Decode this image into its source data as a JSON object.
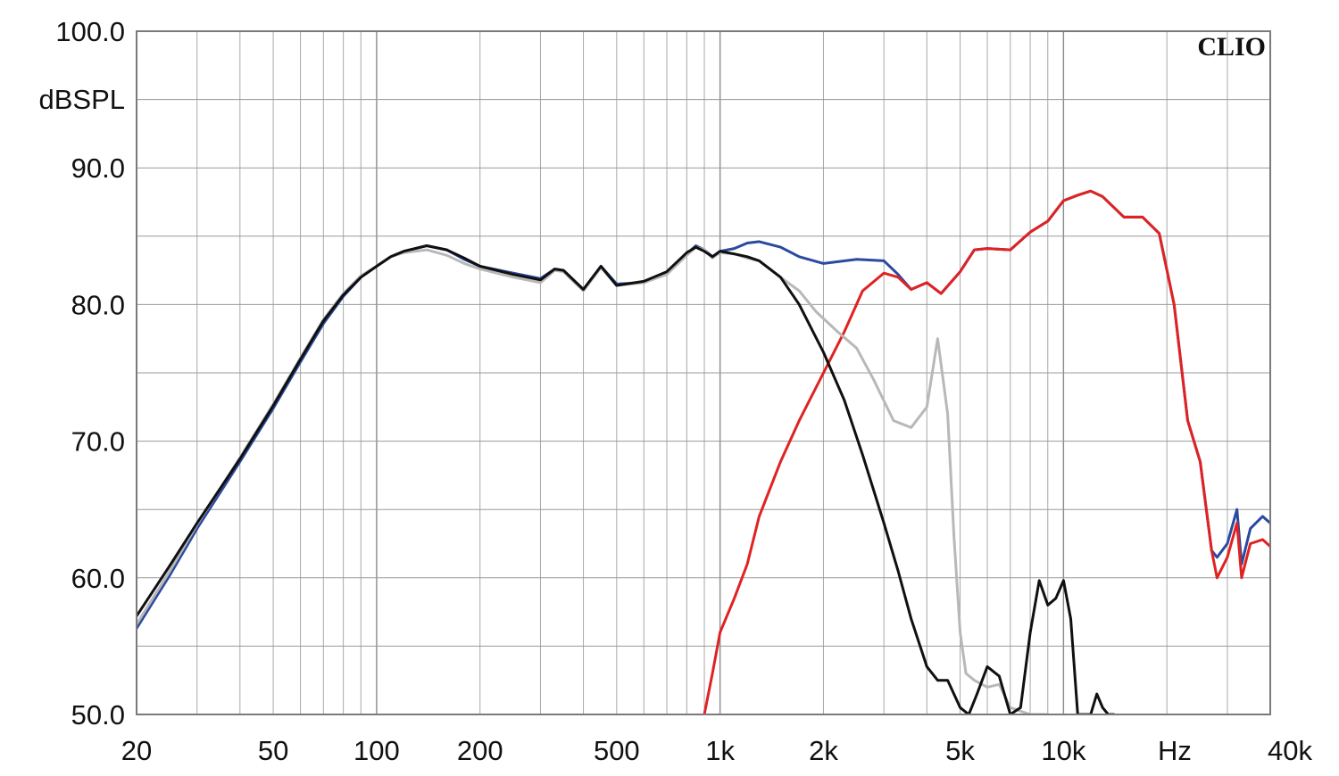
{
  "brand_label": "CLIO",
  "chart_data": {
    "type": "line",
    "ylabel": "dBSPL",
    "x_unit_label": "Hz",
    "x_scale": "log",
    "xlim": [
      20,
      40000
    ],
    "ylim": [
      50,
      100
    ],
    "grid": true,
    "x_ticks": [
      {
        "value": 20,
        "label": "20"
      },
      {
        "value": 50,
        "label": "50"
      },
      {
        "value": 100,
        "label": "100"
      },
      {
        "value": 200,
        "label": "200"
      },
      {
        "value": 500,
        "label": "500"
      },
      {
        "value": 1000,
        "label": "1k"
      },
      {
        "value": 2000,
        "label": "2k"
      },
      {
        "value": 5000,
        "label": "5k"
      },
      {
        "value": 10000,
        "label": "10k"
      },
      {
        "value": 40000,
        "label": "40k"
      }
    ],
    "y_ticks": [
      {
        "value": 100,
        "label": "100.0"
      },
      {
        "value": 90,
        "label": "90.0"
      },
      {
        "value": 80,
        "label": "80.0"
      },
      {
        "value": 70,
        "label": "70.0"
      },
      {
        "value": 60,
        "label": "60.0"
      },
      {
        "value": 50,
        "label": "50.0"
      }
    ],
    "series": [
      {
        "color": "#2a4aa0",
        "x": [
          20,
          25,
          30,
          40,
          50,
          60,
          70,
          80,
          90,
          100,
          110,
          120,
          140,
          160,
          180,
          200,
          250,
          300,
          330,
          350,
          400,
          450,
          500,
          600,
          700,
          800,
          850,
          900,
          950,
          1000,
          1100,
          1200,
          1300,
          1500,
          1700,
          2000,
          2500,
          3000,
          3300,
          3600,
          4000,
          4400,
          5000,
          5500,
          6000,
          7000,
          8000,
          9000,
          10000,
          11000,
          12000,
          13000,
          15000,
          17000,
          19000,
          21000,
          23000,
          25000,
          27000,
          28000,
          30000,
          32000,
          33000,
          35000,
          38000,
          40000
        ],
        "y": [
          56.3,
          60.2,
          63.6,
          68.5,
          72.4,
          75.8,
          78.6,
          80.6,
          82.0,
          82.8,
          83.5,
          83.9,
          84.3,
          84.0,
          83.3,
          82.8,
          82.3,
          81.9,
          82.6,
          82.5,
          81.1,
          82.8,
          81.5,
          81.6,
          82.3,
          83.7,
          84.3,
          84.0,
          83.5,
          83.9,
          84.1,
          84.5,
          84.6,
          84.2,
          83.5,
          83.0,
          83.3,
          83.2,
          82.2,
          81.1,
          81.6,
          80.8,
          82.4,
          84.0,
          84.1,
          84.0,
          85.3,
          86.1,
          87.6,
          88.0,
          88.3,
          87.9,
          86.4,
          86.4,
          85.2,
          80.0,
          71.5,
          68.5,
          62.0,
          61.5,
          62.5,
          65.0,
          61.0,
          63.6,
          64.5,
          64.0
        ]
      },
      {
        "color": "#e02222",
        "x": [
          900,
          950,
          1000,
          1100,
          1200,
          1300,
          1500,
          1700,
          2000,
          2300,
          2600,
          3000,
          3300,
          3600,
          4000,
          4400,
          5000,
          5500,
          6000,
          7000,
          8000,
          9000,
          10000,
          11000,
          12000,
          13000,
          15000,
          17000,
          19000,
          21000,
          23000,
          25000,
          27000,
          28000,
          30000,
          32000,
          33000,
          35000,
          38000,
          40000
        ],
        "y": [
          50.0,
          53.0,
          56.0,
          58.5,
          61.0,
          64.5,
          68.5,
          71.5,
          75.0,
          78.0,
          81.0,
          82.3,
          82.0,
          81.1,
          81.6,
          80.8,
          82.4,
          84.0,
          84.1,
          84.0,
          85.3,
          86.1,
          87.6,
          88.0,
          88.3,
          87.9,
          86.4,
          86.4,
          85.2,
          80.0,
          71.5,
          68.5,
          62.0,
          60.0,
          61.5,
          64.0,
          60.0,
          62.5,
          62.8,
          62.3
        ]
      },
      {
        "color": "#b8b8b8",
        "x": [
          20,
          25,
          30,
          40,
          50,
          60,
          70,
          80,
          90,
          100,
          110,
          120,
          140,
          160,
          180,
          200,
          250,
          300,
          330,
          350,
          400,
          450,
          500,
          600,
          700,
          800,
          850,
          900,
          950,
          1000,
          1100,
          1200,
          1300,
          1500,
          1700,
          1900,
          2200,
          2500,
          2800,
          3200,
          3600,
          4000,
          4300,
          4600,
          4800,
          5000,
          5200,
          5500,
          6000,
          6500,
          7000,
          8000,
          9000
        ],
        "y": [
          56.6,
          60.5,
          63.9,
          68.8,
          72.7,
          76.1,
          78.9,
          80.8,
          82.1,
          82.8,
          83.5,
          83.8,
          84.0,
          83.6,
          83.0,
          82.6,
          82.0,
          81.6,
          82.5,
          82.4,
          81.0,
          82.7,
          81.4,
          81.6,
          82.2,
          83.6,
          84.2,
          84.0,
          83.4,
          83.8,
          83.7,
          83.4,
          83.2,
          82.0,
          81.0,
          79.5,
          78.0,
          76.8,
          74.5,
          71.5,
          71.0,
          72.5,
          77.5,
          72.0,
          63.0,
          56.0,
          53.0,
          52.5,
          52.0,
          52.2,
          50.5,
          50.0,
          50.0
        ]
      },
      {
        "color": "#101010",
        "x": [
          20,
          25,
          30,
          40,
          50,
          60,
          70,
          80,
          90,
          100,
          110,
          120,
          140,
          160,
          180,
          200,
          250,
          300,
          330,
          350,
          400,
          450,
          500,
          600,
          700,
          800,
          850,
          900,
          950,
          1000,
          1100,
          1200,
          1300,
          1500,
          1700,
          2000,
          2300,
          2600,
          3000,
          3300,
          3600,
          4000,
          4300,
          4600,
          5000,
          5300,
          5600,
          6000,
          6500,
          7000,
          7500,
          8000,
          8500,
          9000,
          9500,
          10000,
          10500,
          11000,
          11500,
          12000,
          12500,
          13000,
          13500,
          14000
        ],
        "y": [
          57.2,
          60.9,
          64.0,
          68.7,
          72.6,
          76.0,
          78.8,
          80.7,
          82.0,
          82.8,
          83.5,
          83.9,
          84.3,
          84.0,
          83.4,
          82.8,
          82.2,
          81.8,
          82.6,
          82.5,
          81.1,
          82.8,
          81.4,
          81.7,
          82.4,
          83.8,
          84.2,
          83.9,
          83.5,
          83.9,
          83.7,
          83.5,
          83.2,
          82.0,
          80.0,
          76.5,
          73.0,
          69.0,
          64.0,
          60.5,
          57.0,
          53.5,
          52.5,
          52.5,
          50.5,
          50.0,
          51.5,
          53.5,
          52.8,
          50.0,
          50.5,
          56.0,
          59.8,
          58.0,
          58.5,
          59.8,
          57.0,
          50.0,
          50.0,
          50.0,
          51.5,
          50.5,
          50.0,
          50.0
        ]
      }
    ]
  }
}
